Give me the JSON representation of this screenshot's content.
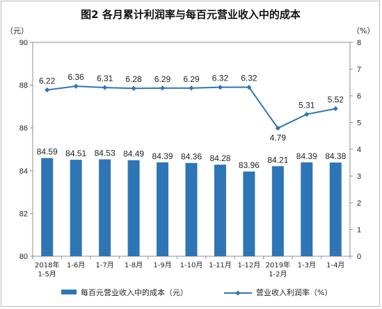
{
  "chart_data": {
    "type": "bar+line",
    "title": "图2  各月累计利润率与每百元营业收入中的成本",
    "left_unit": "（元）",
    "right_unit": "（%）",
    "categories": [
      [
        "2018年",
        "1-5月"
      ],
      [
        "1-6月"
      ],
      [
        "1-7月"
      ],
      [
        "1-8月"
      ],
      [
        "1-9月"
      ],
      [
        "1-10月"
      ],
      [
        "1-11月"
      ],
      [
        "1-12月"
      ],
      [
        "2019年",
        "1-2月"
      ],
      [
        "1-3月"
      ],
      [
        "1-4月"
      ]
    ],
    "bar_series": {
      "name": "每百元营业收入中的成本（元）",
      "values": [
        84.59,
        84.51,
        84.53,
        84.49,
        84.39,
        84.36,
        84.28,
        83.96,
        84.21,
        84.39,
        84.38
      ],
      "labels": [
        "84.59",
        "84.51",
        "84.53",
        "84.49",
        "84.39",
        "84.36",
        "84.28",
        "83.96",
        "84.21",
        "84.39",
        "84.38"
      ],
      "color": "#2e75b6"
    },
    "line_series": {
      "name": "营业收入利润率（%）",
      "values": [
        6.22,
        6.36,
        6.31,
        6.28,
        6.29,
        6.29,
        6.32,
        6.32,
        4.79,
        5.31,
        5.52
      ],
      "labels": [
        "6.22",
        "6.36",
        "6.31",
        "6.28",
        "6.29",
        "6.29",
        "6.32",
        "6.32",
        "4.79",
        "5.31",
        "5.52"
      ],
      "color": "#2e75b6"
    },
    "left_axis": {
      "min": 80,
      "max": 90,
      "ticks": [
        "80",
        "82",
        "84",
        "86",
        "88",
        "90"
      ]
    },
    "right_axis": {
      "min": 0,
      "max": 8,
      "ticks": [
        "0",
        "1",
        "2",
        "3",
        "4",
        "5",
        "6",
        "7",
        "8"
      ]
    },
    "gridlines": false,
    "legend_position": "bottom"
  }
}
